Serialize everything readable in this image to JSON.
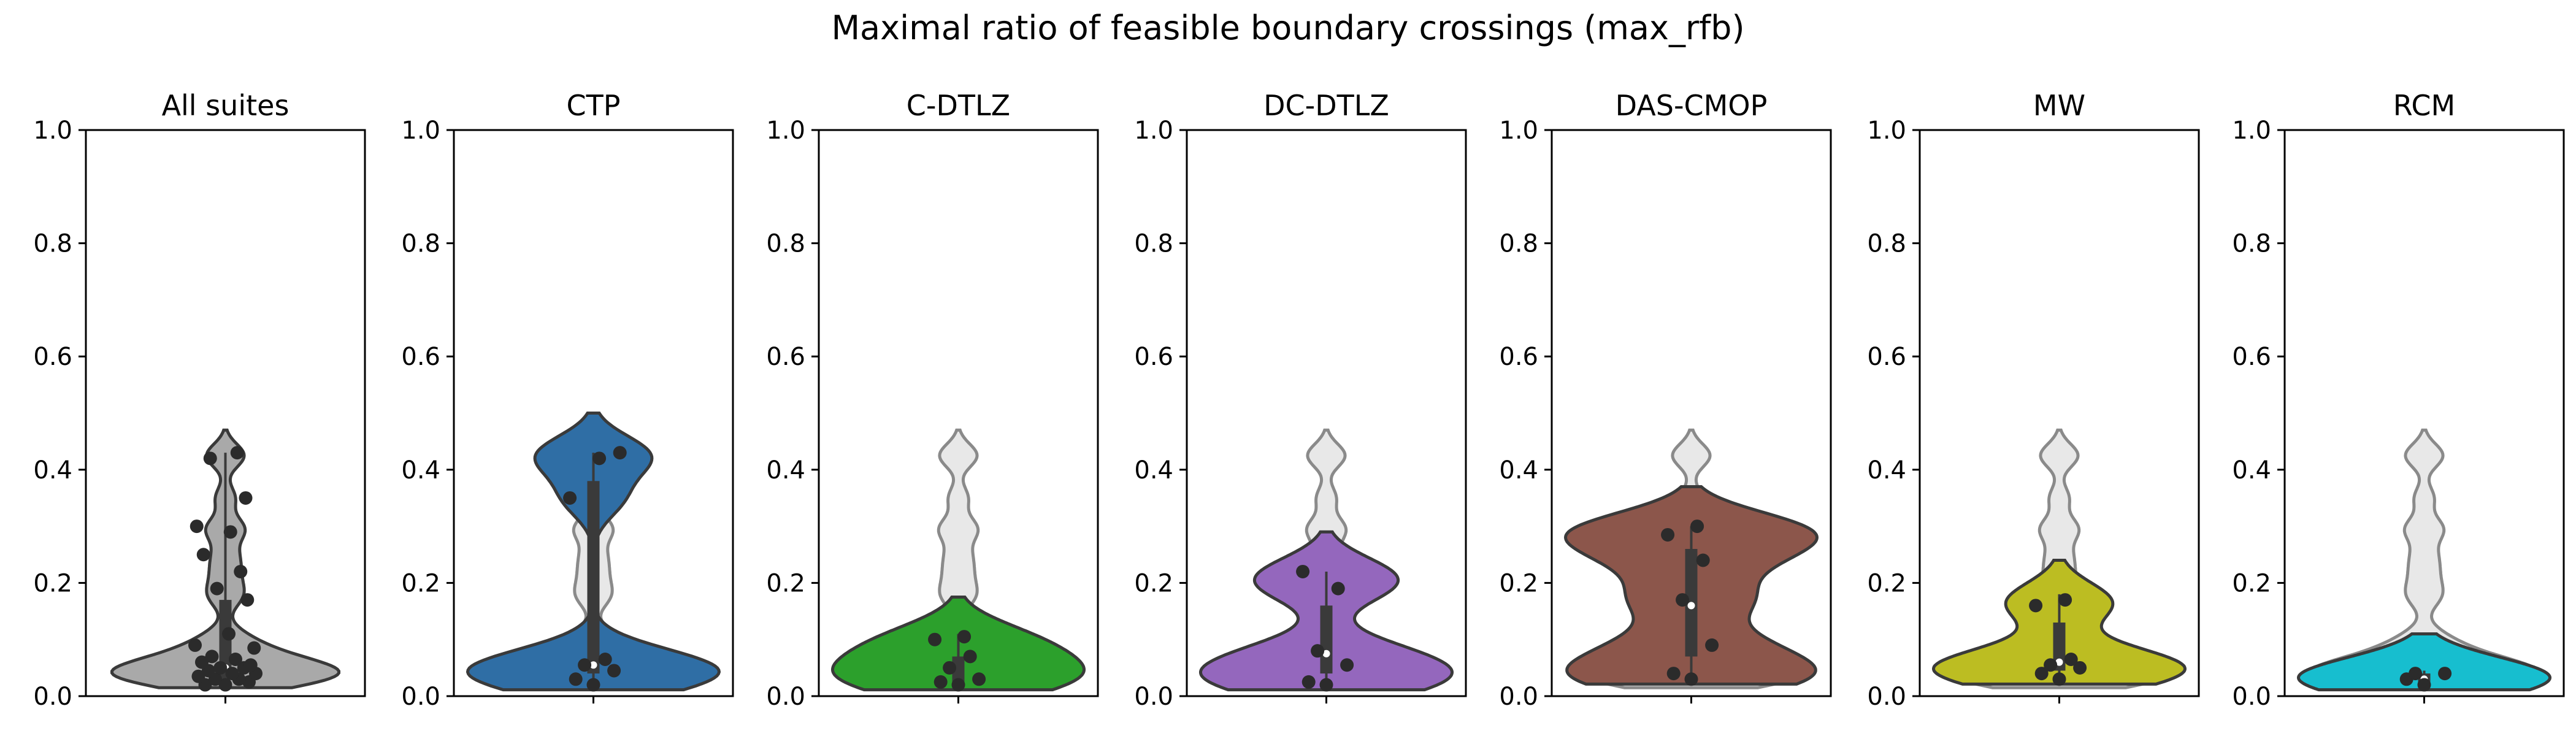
{
  "title": "Maximal ratio of feasible boundary crossings (max_rfb)",
  "chart_data": [
    {
      "type": "violin",
      "title": "All suites",
      "ylim": [
        0,
        1
      ],
      "yticks": [
        0.0,
        0.2,
        0.4,
        0.6,
        0.8,
        1.0
      ],
      "grid": false,
      "color": "#a9a9a9",
      "background": null,
      "median": 0.05,
      "q1": 0.03,
      "q3": 0.17,
      "whisker": [
        0.02,
        0.43
      ],
      "points": [
        0.02,
        0.02,
        0.025,
        0.03,
        0.03,
        0.035,
        0.04,
        0.04,
        0.045,
        0.05,
        0.05,
        0.055,
        0.06,
        0.065,
        0.07,
        0.085,
        0.09,
        0.11,
        0.17,
        0.19,
        0.22,
        0.25,
        0.29,
        0.3,
        0.35,
        0.42,
        0.43
      ]
    },
    {
      "type": "violin",
      "title": "CTP",
      "ylim": [
        0,
        1
      ],
      "yticks": [
        0.0,
        0.2,
        0.4,
        0.6,
        0.8,
        1.0
      ],
      "grid": false,
      "color": "#2f6ea5",
      "background": "all-suites",
      "median": 0.055,
      "q1": 0.04,
      "q3": 0.38,
      "whisker": [
        0.02,
        0.43
      ],
      "points": [
        0.02,
        0.03,
        0.045,
        0.055,
        0.065,
        0.35,
        0.42,
        0.43
      ]
    },
    {
      "type": "violin",
      "title": "C-DTLZ",
      "ylim": [
        0,
        1
      ],
      "yticks": [
        0.0,
        0.2,
        0.4,
        0.6,
        0.8,
        1.0
      ],
      "grid": false,
      "color": "#2ca02c",
      "background": "all-suites",
      "median": 0.025,
      "q1": 0.02,
      "q3": 0.07,
      "whisker": [
        0.02,
        0.11
      ],
      "points": [
        0.02,
        0.025,
        0.03,
        0.05,
        0.07,
        0.1,
        0.105
      ]
    },
    {
      "type": "violin",
      "title": "DC-DTLZ",
      "ylim": [
        0,
        1
      ],
      "yticks": [
        0.0,
        0.2,
        0.4,
        0.6,
        0.8,
        1.0
      ],
      "grid": false,
      "color": "#9467bd",
      "background": "all-suites",
      "median": 0.075,
      "q1": 0.04,
      "q3": 0.16,
      "whisker": [
        0.02,
        0.22
      ],
      "points": [
        0.02,
        0.025,
        0.055,
        0.08,
        0.19,
        0.22
      ]
    },
    {
      "type": "violin",
      "title": "DAS-CMOP",
      "ylim": [
        0,
        1
      ],
      "yticks": [
        0.0,
        0.2,
        0.4,
        0.6,
        0.8,
        1.0
      ],
      "grid": false,
      "color": "#8c564b",
      "background": "all-suites",
      "median": 0.16,
      "q1": 0.07,
      "q3": 0.26,
      "whisker": [
        0.03,
        0.3
      ],
      "points": [
        0.03,
        0.04,
        0.09,
        0.17,
        0.24,
        0.285,
        0.3
      ]
    },
    {
      "type": "violin",
      "title": "MW",
      "ylim": [
        0,
        1
      ],
      "yticks": [
        0.0,
        0.2,
        0.4,
        0.6,
        0.8,
        1.0
      ],
      "grid": false,
      "color": "#bcbd22",
      "background": "all-suites",
      "median": 0.06,
      "q1": 0.045,
      "q3": 0.13,
      "whisker": [
        0.03,
        0.18
      ],
      "points": [
        0.03,
        0.04,
        0.05,
        0.055,
        0.065,
        0.16,
        0.17
      ]
    },
    {
      "type": "violin",
      "title": "RCM",
      "ylim": [
        0,
        1
      ],
      "yticks": [
        0.0,
        0.2,
        0.4,
        0.6,
        0.8,
        1.0
      ],
      "grid": false,
      "color": "#17becf",
      "background": "all-suites",
      "median": 0.03,
      "q1": 0.025,
      "q3": 0.04,
      "whisker": [
        0.02,
        0.045
      ],
      "points": [
        0.02,
        0.03,
        0.04,
        0.04
      ]
    }
  ]
}
